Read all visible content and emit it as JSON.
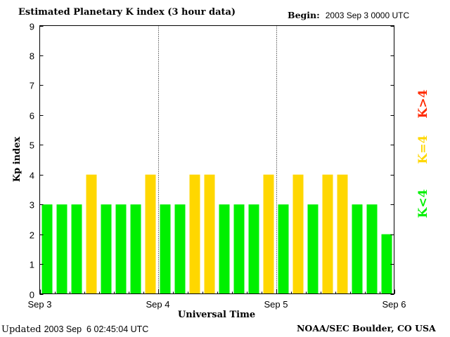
{
  "header": {
    "title": "Estimated Planetary K index (3 hour data)",
    "begin_label": "Begin:",
    "begin_value": "2003 Sep 3 0000 UTC"
  },
  "footer": {
    "updated_label": "Updated",
    "updated_value": "2003 Sep  6 02:45:04 UTC",
    "credit": "NOAA/SEC Boulder, CO USA"
  },
  "colors": {
    "low": "#00f000",
    "mid": "#ffd700",
    "high": "#ff2a00",
    "axis": "#000000",
    "background": "#ffffff"
  },
  "legend": [
    {
      "label": "K<4",
      "color_key": "low"
    },
    {
      "label": "K=4",
      "color_key": "mid"
    },
    {
      "label": "K>4",
      "color_key": "high"
    }
  ],
  "chart_data": {
    "type": "bar",
    "title": "Estimated Planetary K index (3 hour data)",
    "xlabel": "Universal Time",
    "ylabel": "Kp index",
    "ylim": [
      0,
      9
    ],
    "yticks": [
      0,
      1,
      2,
      3,
      4,
      5,
      6,
      7,
      8,
      9
    ],
    "day_labels": [
      "Sep 3",
      "Sep 4",
      "Sep 5",
      "Sep 6"
    ],
    "bars_per_day": 8,
    "day_separators": "dotted",
    "values": [
      3,
      3,
      3,
      4,
      3,
      3,
      3,
      4,
      3,
      3,
      4,
      4,
      3,
      3,
      3,
      4,
      3,
      4,
      3,
      4,
      4,
      3,
      3,
      2
    ]
  }
}
